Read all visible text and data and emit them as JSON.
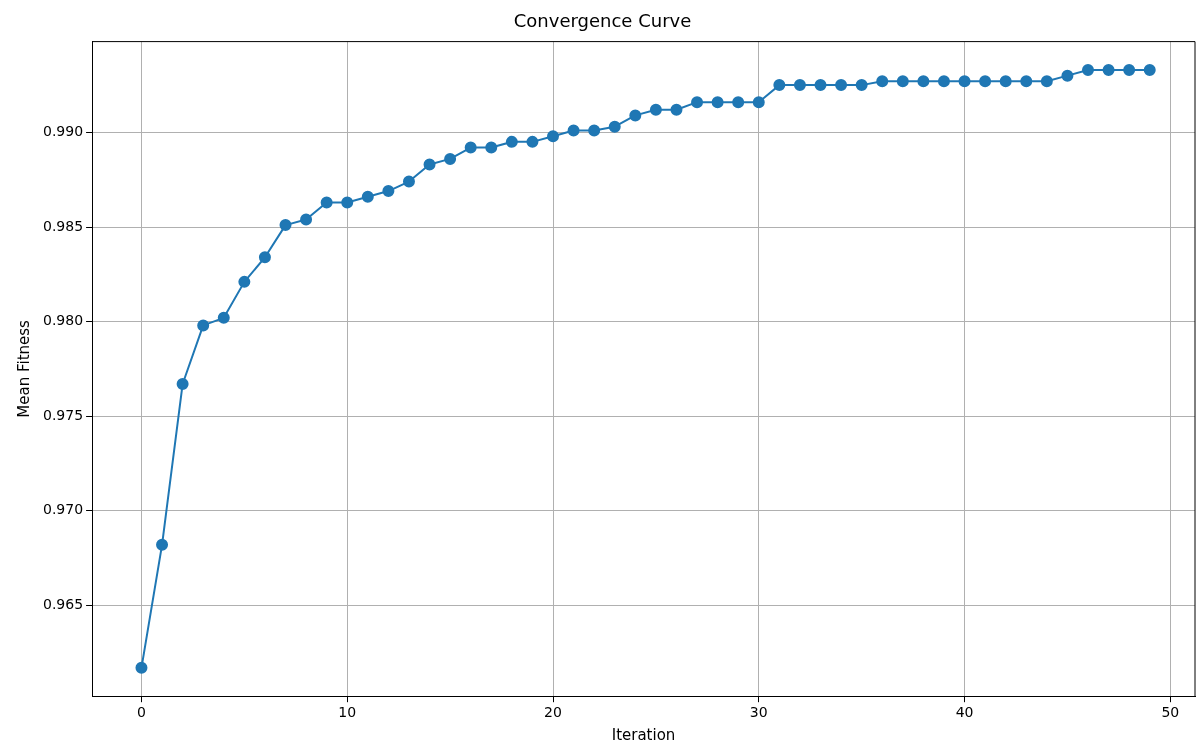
{
  "chart_data": {
    "type": "line",
    "title": "Convergence Curve",
    "xlabel": "Iteration",
    "ylabel": "Mean Fitness",
    "x": [
      0,
      1,
      2,
      3,
      4,
      5,
      6,
      7,
      8,
      9,
      10,
      11,
      12,
      13,
      14,
      15,
      16,
      17,
      18,
      19,
      20,
      21,
      22,
      23,
      24,
      25,
      26,
      27,
      28,
      29,
      30,
      31,
      32,
      33,
      34,
      35,
      36,
      37,
      38,
      39,
      40,
      41,
      42,
      43,
      44,
      45,
      46,
      47,
      48,
      49
    ],
    "series": [
      {
        "color": "#1f77b4",
        "values": [
          0.9617,
          0.9682,
          0.9767,
          0.9798,
          0.9802,
          0.9821,
          0.9834,
          0.9851,
          0.9854,
          0.9863,
          0.9863,
          0.9866,
          0.9869,
          0.9874,
          0.9883,
          0.9886,
          0.9892,
          0.9892,
          0.9895,
          0.9895,
          0.9898,
          0.9901,
          0.9901,
          0.9903,
          0.9909,
          0.9912,
          0.9912,
          0.9916,
          0.9916,
          0.9916,
          0.9916,
          0.9925,
          0.9925,
          0.9925,
          0.9925,
          0.9925,
          0.9927,
          0.9927,
          0.9927,
          0.9927,
          0.9927,
          0.9927,
          0.9927,
          0.9927,
          0.9927,
          0.993,
          0.9933,
          0.9933,
          0.9933,
          0.9933
        ]
      }
    ],
    "xlim": [
      -2.4,
      51.2
    ],
    "xticks": [
      0,
      10,
      20,
      30,
      40,
      50
    ],
    "ylim": [
      0.9602,
      0.9948
    ],
    "yticks": [
      {
        "value": 0.965,
        "label": "0.965"
      },
      {
        "value": 0.97,
        "label": "0.970"
      },
      {
        "value": 0.975,
        "label": "0.975"
      },
      {
        "value": 0.98,
        "label": "0.980"
      },
      {
        "value": 0.985,
        "label": "0.985"
      },
      {
        "value": 0.99,
        "label": "0.990"
      }
    ],
    "grid": true,
    "marker": "circle",
    "line_style": "solid"
  }
}
